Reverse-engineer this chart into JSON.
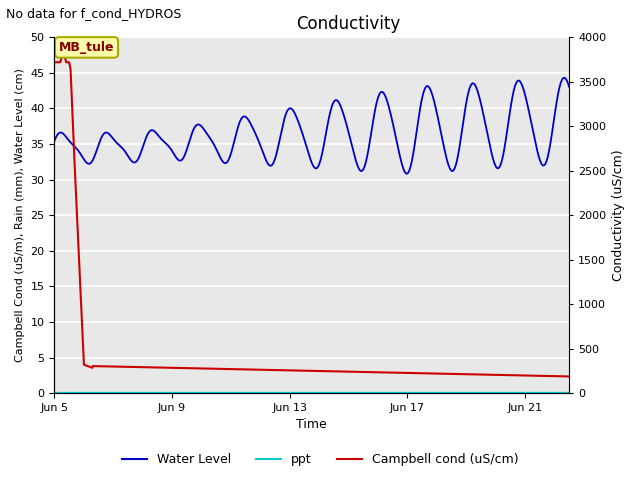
{
  "title": "Conductivity",
  "top_left_text": "No data for f_cond_HYDROS",
  "ylabel_left": "Campbell Cond (uS/m), Rain (mm), Water Level (cm)",
  "ylabel_right": "Conductivity (uS/cm)",
  "xlabel": "Time",
  "xlim": [
    0,
    17.5
  ],
  "ylim_left": [
    0,
    50
  ],
  "ylim_right": [
    0,
    4000
  ],
  "xtick_labels": [
    "Jun 5",
    "Jun 9",
    "Jun 13",
    "Jun 17",
    "Jun 21"
  ],
  "xtick_positions": [
    0,
    4,
    8,
    12,
    16
  ],
  "ytick_left": [
    0,
    5,
    10,
    15,
    20,
    25,
    30,
    35,
    40,
    45,
    50
  ],
  "ytick_right": [
    0,
    500,
    1000,
    1500,
    2000,
    2500,
    3000,
    3500,
    4000
  ],
  "fig_bg_color": "#ffffff",
  "plot_bg_color": "#e8e8e8",
  "grid_color": "#ffffff",
  "line_blue": "#0000cc",
  "line_cyan": "#00cccc",
  "line_red": "#cc0000",
  "mb_tule_box_color": "#ffffaa",
  "mb_tule_text": "MB_tule",
  "mb_tule_text_color": "#880000",
  "mb_tule_edge_color": "#aaaa00"
}
